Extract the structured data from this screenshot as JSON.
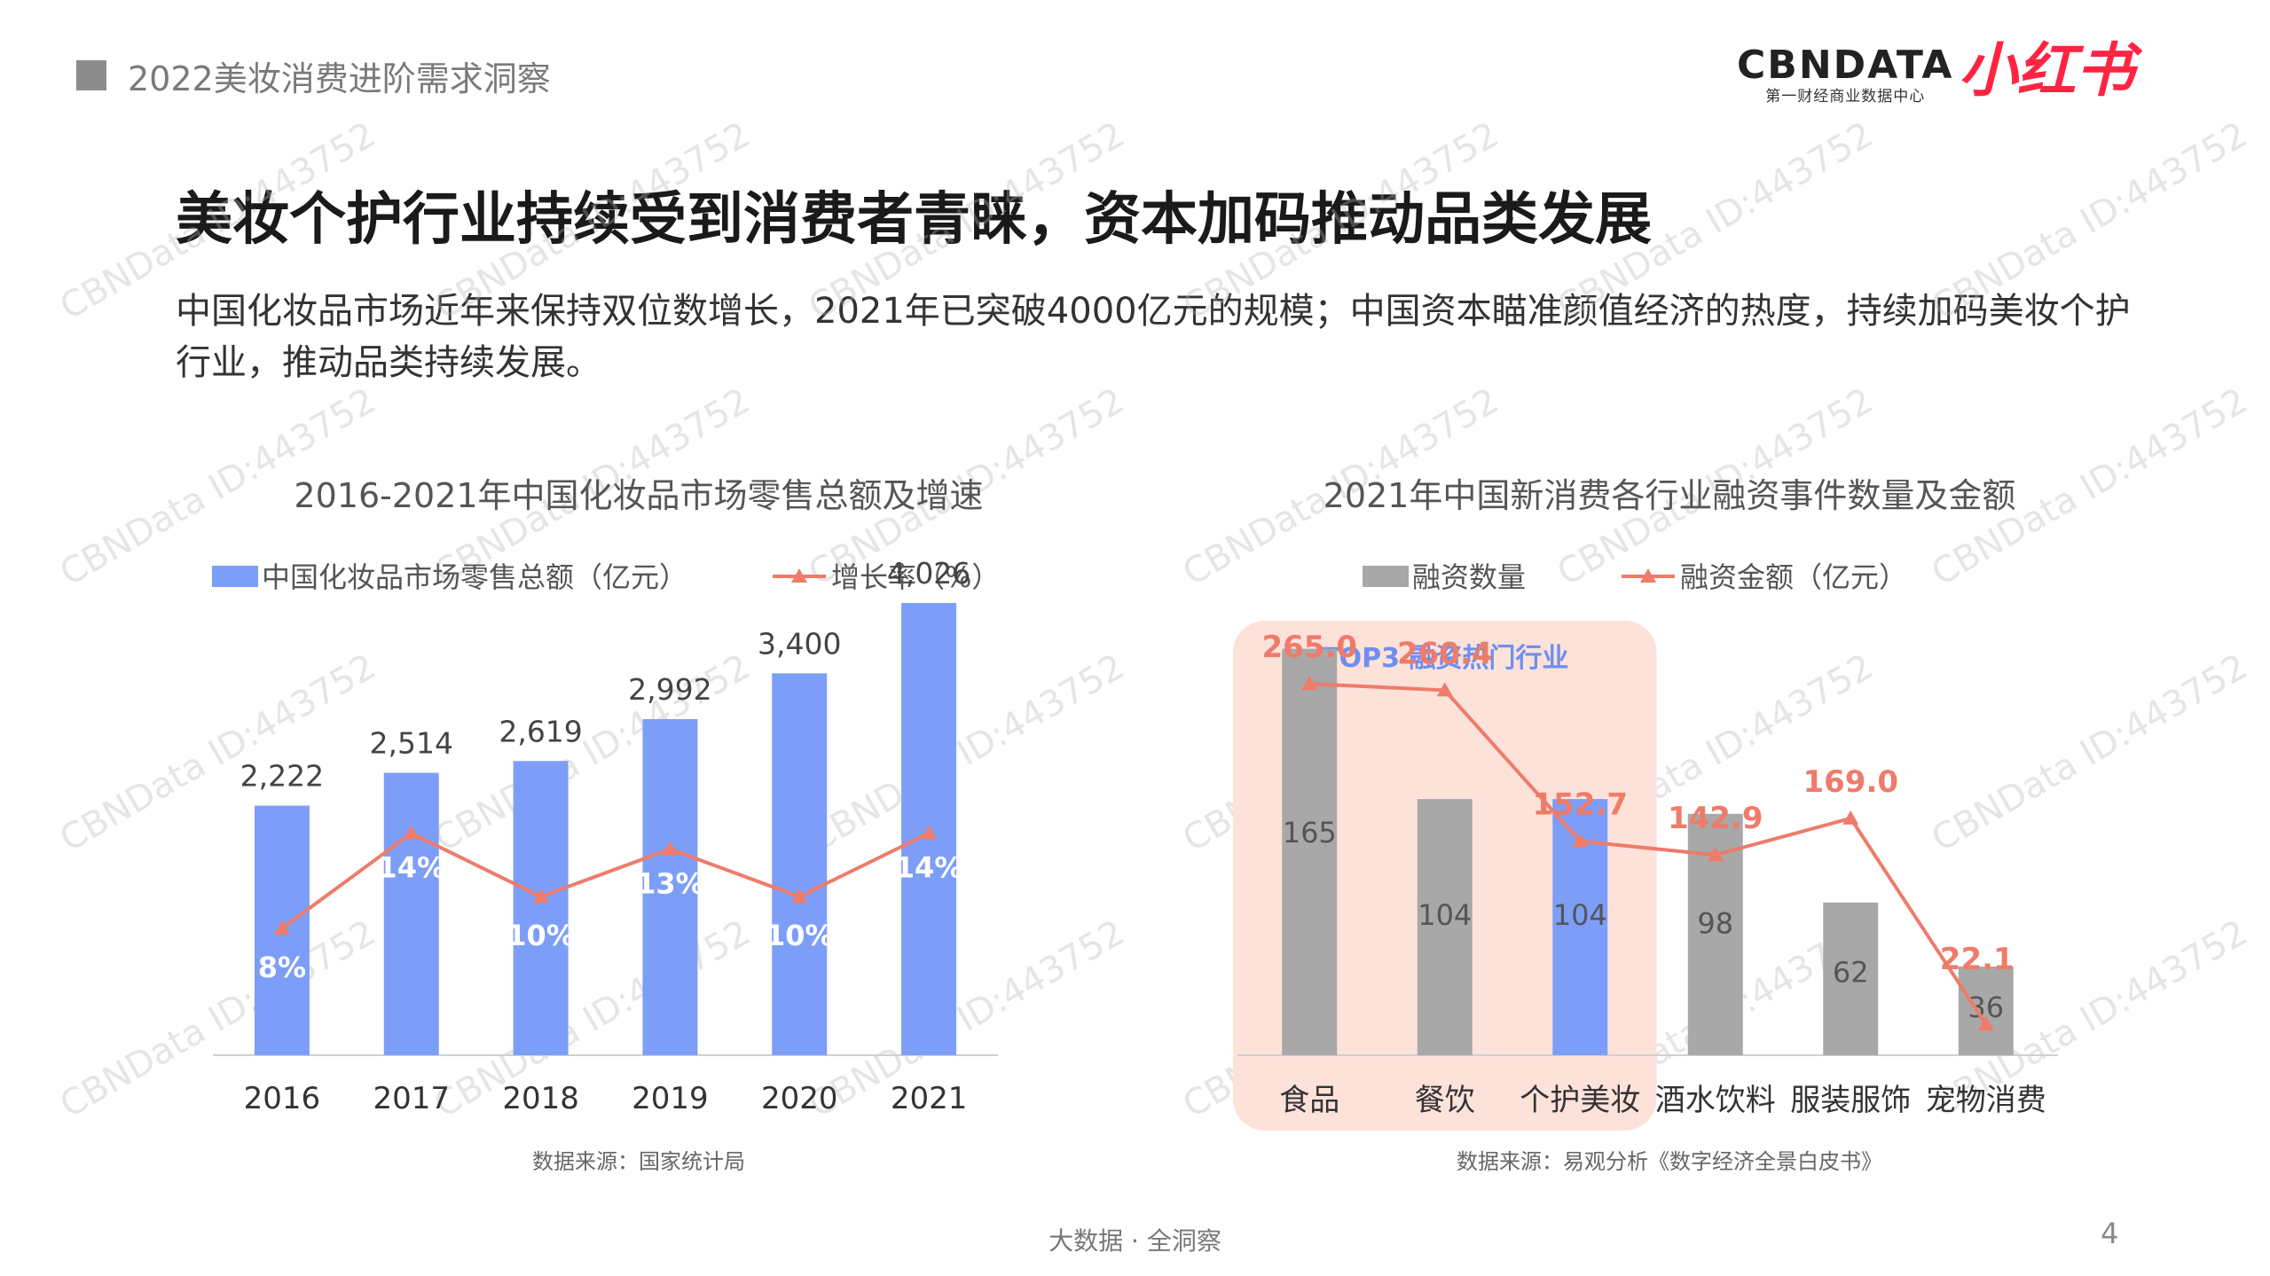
{
  "header": {
    "section_title": "2022美妆消费进阶需求洞察"
  },
  "logos": {
    "cbn_main": "CBNDATA",
    "cbn_sub": "第一财经商业数据中心",
    "xhs": "小红书"
  },
  "title": "美妆个护行业持续受到消费者青睐，资本加码推动品类发展",
  "description": "中国化妆品市场近年来保持双位数增长，2021年已突破4000亿元的规模；中国资本瞄准颜值经济的热度，持续加码美妆个护行业，推动品类持续发展。",
  "watermark": "CBNData ID:443752",
  "footer": {
    "center": "大数据 · 全洞察",
    "page": "4"
  },
  "colors": {
    "bar_blue": "#7d9ef8",
    "bar_gray": "#a8a8a8",
    "line_red": "#ef7b6a",
    "highlight_bg": "#fde2da",
    "top3_text": "#6e8ff0"
  },
  "chart_data": [
    {
      "type": "bar",
      "title": "2016-2021年中国化妆品市场零售总额及增速",
      "categories": [
        "2016",
        "2017",
        "2018",
        "2019",
        "2020",
        "2021"
      ],
      "series": [
        {
          "name": "中国化妆品市场零售总额（亿元）",
          "type": "bar",
          "values": [
            2222,
            2514,
            2619,
            2992,
            3400,
            4026
          ],
          "labels": [
            "2,222",
            "2,514",
            "2,619",
            "2,992",
            "3,400",
            "4,026"
          ]
        },
        {
          "name": "增长率（%）",
          "type": "line",
          "values": [
            8,
            14,
            10,
            13,
            10,
            14
          ],
          "labels": [
            "8%",
            "14%",
            "10%",
            "13%",
            "10%",
            "14%"
          ]
        }
      ],
      "ylim": [
        0,
        4500
      ],
      "y2lim": [
        0,
        33
      ],
      "legend": "top",
      "source": "数据来源：国家统计局"
    },
    {
      "type": "bar",
      "title": "2021年中国新消费各行业融资事件数量及金额",
      "categories": [
        "食品",
        "餐饮",
        "个护美妆",
        "酒水饮料",
        "服装服饰",
        "宠物消费"
      ],
      "series": [
        {
          "name": "融资数量",
          "type": "bar",
          "values": [
            165,
            104,
            104,
            98,
            62,
            36
          ],
          "labels": [
            "165",
            "104",
            "104",
            "98",
            "62",
            "36"
          ]
        },
        {
          "name": "融资金额（亿元）",
          "type": "line",
          "values": [
            265.0,
            260.4,
            152.7,
            142.9,
            169.0,
            22.1
          ],
          "labels": [
            "265.0",
            "260.4",
            "152.7",
            "142.9",
            "169.0",
            "22.1"
          ]
        }
      ],
      "highlight_category": "个护美妆",
      "annotation": "TOP3 融资热门行业",
      "ylim": [
        0,
        180
      ],
      "y2lim": [
        0,
        310
      ],
      "legend": "top",
      "source": "数据来源：易观分析《数字经济全景白皮书》"
    }
  ]
}
